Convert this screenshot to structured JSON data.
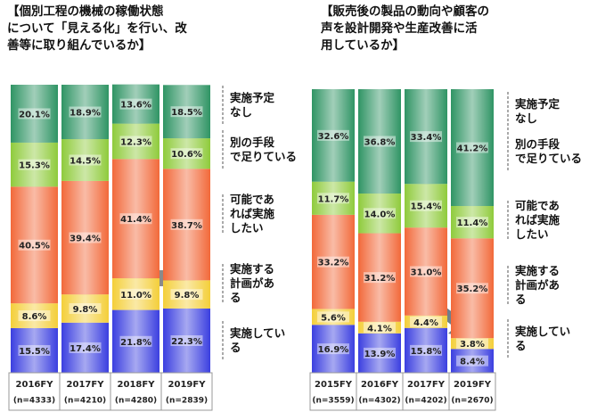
{
  "chart_data": [
    {
      "type": "stacked_bar",
      "title": "【個別工程の機械の稼働状態\nについて「見える化」を行い、改\n善等に取り組んでいるか】",
      "categories": [
        "2016FY",
        "2017FY",
        "2018FY",
        "2019FY"
      ],
      "sample_sizes": [
        "(n=4333)",
        "(n=4210)",
        "(n=4280)",
        "(n=2839)"
      ],
      "ylim": [
        0,
        100
      ],
      "series": [
        {
          "name": "実施してい\nる",
          "color": "#3b3fe0",
          "values": [
            15.5,
            17.4,
            21.8,
            22.3
          ],
          "value_labels": [
            "15.5%",
            "17.4%",
            "21.8%",
            "22.3%"
          ]
        },
        {
          "name": "実施する\n計画があ\nる",
          "color": "#f4cf3a",
          "values": [
            8.6,
            9.8,
            11.0,
            9.8
          ],
          "value_labels": [
            "8.6%",
            "9.8%",
            "11.0%",
            "9.8%"
          ]
        },
        {
          "name": "可能であ\nれば実施\nしたい",
          "color": "#f2693a",
          "values": [
            40.5,
            39.4,
            41.4,
            38.7
          ],
          "value_labels": [
            "40.5%",
            "39.4%",
            "41.4%",
            "38.7%"
          ]
        },
        {
          "name": "別の手段\nで足りている",
          "color": "#8fcb3c",
          "values": [
            15.3,
            14.5,
            12.3,
            10.6
          ],
          "value_labels": [
            "15.3%",
            "14.5%",
            "12.3%",
            "10.6%"
          ]
        },
        {
          "name": "実施予定\nなし",
          "color": "#2f9464",
          "values": [
            20.1,
            18.9,
            13.6,
            18.5
          ],
          "value_labels": [
            "20.1%",
            "18.9%",
            "13.6%",
            "18.5%"
          ]
        }
      ]
    },
    {
      "type": "stacked_bar",
      "title": "【販売後の製品の動向や顧客の\n声を設計開発や生産改善に活\n用しているか】",
      "categories": [
        "2015FY",
        "2016FY",
        "2017FY",
        "2019FY"
      ],
      "sample_sizes": [
        "(n=3559)",
        "(n=4302)",
        "(n=4202)",
        "(n=2670)"
      ],
      "ylim": [
        0,
        100
      ],
      "series": [
        {
          "name": "実施してい\nる",
          "color": "#3b3fe0",
          "values": [
            16.9,
            13.9,
            15.8,
            8.4
          ],
          "value_labels": [
            "16.9%",
            "13.9%",
            "15.8%",
            "8.4%"
          ]
        },
        {
          "name": "実施する\n計画があ\nる",
          "color": "#f4cf3a",
          "values": [
            5.6,
            4.1,
            4.4,
            3.8
          ],
          "value_labels": [
            "5.6%",
            "4.1%",
            "4.4%",
            "3.8%"
          ]
        },
        {
          "name": "可能であ\nれば実施\nしたい",
          "color": "#f2693a",
          "values": [
            33.2,
            31.2,
            31.0,
            35.2
          ],
          "value_labels": [
            "33.2%",
            "31.2%",
            "31.0%",
            "35.2%"
          ]
        },
        {
          "name": "別の手段\nで足りている",
          "color": "#8fcb3c",
          "values": [
            11.7,
            14.0,
            15.4,
            11.4
          ],
          "value_labels": [
            "11.7%",
            "14.0%",
            "15.4%",
            "11.4%"
          ]
        },
        {
          "name": "実施予定\nなし",
          "color": "#2f9464",
          "values": [
            32.6,
            36.8,
            33.4,
            41.2
          ],
          "value_labels": [
            "32.6%",
            "36.8%",
            "33.4%",
            "41.2%"
          ]
        }
      ]
    }
  ]
}
